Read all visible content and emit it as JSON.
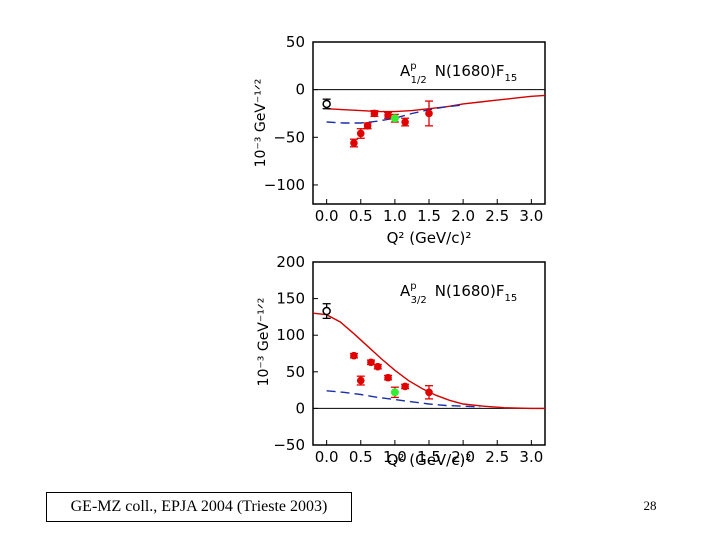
{
  "caption": "GE-MZ coll., EPJA 2004 (Trieste 2003)",
  "page_number": "28",
  "colors": {
    "axis": "#000000",
    "maid_curve": "#d40000",
    "dashed_curve": "#1a2fa8",
    "red_points": "#e00000",
    "green_point": "#33ee33"
  },
  "chart_data": [
    {
      "type": "scatter",
      "title": "A^p_{1/2} N(1680)F_15",
      "title_parts": {
        "a": "A",
        "sup": "p",
        "sub": "1/2",
        "rest": "N(1680)F",
        "rest_sub": "15"
      },
      "xlabel": "Q² (GeV/c)²",
      "ylabel": "10⁻³ GeV⁻¹ᐟ²",
      "xlim": [
        -0.2,
        3.2
      ],
      "ylim": [
        -120,
        50
      ],
      "xticks": [
        "0.0",
        "0.5",
        "1.0",
        "1.5",
        "2.0",
        "2.5",
        "3.0"
      ],
      "yticks": [
        "50",
        "0",
        "−50",
        "−100"
      ],
      "ytick_values": [
        50,
        0,
        -50,
        -100
      ],
      "series": [
        {
          "name": "photopoint",
          "style": "open-circle",
          "points": [
            {
              "x": 0.0,
              "y": -15,
              "err": 5
            }
          ]
        },
        {
          "name": "GE-MZ",
          "style": "red-filled",
          "points": [
            {
              "x": 0.4,
              "y": -56,
              "err": 4
            },
            {
              "x": 0.5,
              "y": -46,
              "err": 5
            },
            {
              "x": 0.6,
              "y": -38,
              "err": 3
            },
            {
              "x": 0.7,
              "y": -25,
              "err": 3
            },
            {
              "x": 0.9,
              "y": -27,
              "err": 3
            },
            {
              "x": 1.15,
              "y": -34,
              "err": 4
            },
            {
              "x": 1.5,
              "y": -25,
              "err": 13
            }
          ]
        },
        {
          "name": "green point",
          "style": "green-filled",
          "points": [
            {
              "x": 1.0,
              "y": -30,
              "err": 4
            }
          ]
        },
        {
          "name": "MAID (solid)",
          "style": "solid-line",
          "points": [
            [
              0.0,
              -20
            ],
            [
              0.25,
              -21
            ],
            [
              0.5,
              -22
            ],
            [
              0.75,
              -23
            ],
            [
              1.0,
              -23
            ],
            [
              1.25,
              -22
            ],
            [
              1.5,
              -20
            ],
            [
              1.75,
              -18
            ],
            [
              2.0,
              -15
            ],
            [
              2.25,
              -13
            ],
            [
              2.5,
              -11
            ],
            [
              2.75,
              -9
            ],
            [
              3.0,
              -7
            ],
            [
              3.2,
              -6
            ]
          ]
        },
        {
          "name": "dashed",
          "style": "dashed-line",
          "points": [
            [
              0.0,
              -34
            ],
            [
              0.25,
              -35
            ],
            [
              0.5,
              -35
            ],
            [
              0.75,
              -33
            ],
            [
              1.0,
              -30
            ],
            [
              1.25,
              -25
            ],
            [
              1.5,
              -21
            ],
            [
              1.75,
              -18
            ],
            [
              2.0,
              -16
            ]
          ]
        }
      ]
    },
    {
      "type": "scatter",
      "title": "A^p_{3/2} N(1680)F_15",
      "title_parts": {
        "a": "A",
        "sup": "p",
        "sub": "3/2",
        "rest": "N(1680)F",
        "rest_sub": "15"
      },
      "xlabel": "Q² (GeV/c)²",
      "ylabel": "10⁻³ GeV⁻¹ᐟ²",
      "xlim": [
        -0.2,
        3.2
      ],
      "ylim": [
        -50,
        200
      ],
      "xticks": [
        "0.0",
        "0.5",
        "1.0",
        "1.5",
        "2.0",
        "2.5",
        "3.0"
      ],
      "yticks": [
        "200",
        "150",
        "100",
        "50",
        "0",
        "−50"
      ],
      "ytick_values": [
        200,
        150,
        100,
        50,
        0,
        -50
      ],
      "series": [
        {
          "name": "photopoint",
          "style": "open-circle",
          "points": [
            {
              "x": 0.0,
              "y": 133,
              "err": 10
            }
          ]
        },
        {
          "name": "GE-MZ",
          "style": "red-filled",
          "points": [
            {
              "x": 0.4,
              "y": 72,
              "err": 3
            },
            {
              "x": 0.5,
              "y": 38,
              "err": 6
            },
            {
              "x": 0.65,
              "y": 63,
              "err": 3
            },
            {
              "x": 0.75,
              "y": 57,
              "err": 3
            },
            {
              "x": 0.9,
              "y": 42,
              "err": 3
            },
            {
              "x": 1.15,
              "y": 30,
              "err": 3
            },
            {
              "x": 1.5,
              "y": 22,
              "err": 9
            }
          ]
        },
        {
          "name": "green point",
          "style": "green-filled",
          "points": [
            {
              "x": 1.0,
              "y": 22,
              "err": 7
            }
          ]
        },
        {
          "name": "MAID (solid)",
          "style": "solid-line",
          "points": [
            [
              -0.2,
              130
            ],
            [
              0.0,
              128
            ],
            [
              0.2,
              118
            ],
            [
              0.4,
              102
            ],
            [
              0.6,
              85
            ],
            [
              0.8,
              68
            ],
            [
              1.0,
              52
            ],
            [
              1.2,
              38
            ],
            [
              1.4,
              27
            ],
            [
              1.6,
              18
            ],
            [
              1.8,
              11
            ],
            [
              2.0,
              6
            ],
            [
              2.3,
              3
            ],
            [
              2.6,
              1
            ],
            [
              3.0,
              0
            ],
            [
              3.2,
              0
            ]
          ]
        },
        {
          "name": "dashed",
          "style": "dashed-line",
          "points": [
            [
              0.0,
              24
            ],
            [
              0.25,
              22
            ],
            [
              0.5,
              19
            ],
            [
              0.75,
              15
            ],
            [
              1.0,
              12
            ],
            [
              1.25,
              9
            ],
            [
              1.5,
              6
            ],
            [
              1.75,
              4
            ],
            [
              2.0,
              3
            ],
            [
              2.25,
              2
            ]
          ]
        }
      ]
    }
  ]
}
